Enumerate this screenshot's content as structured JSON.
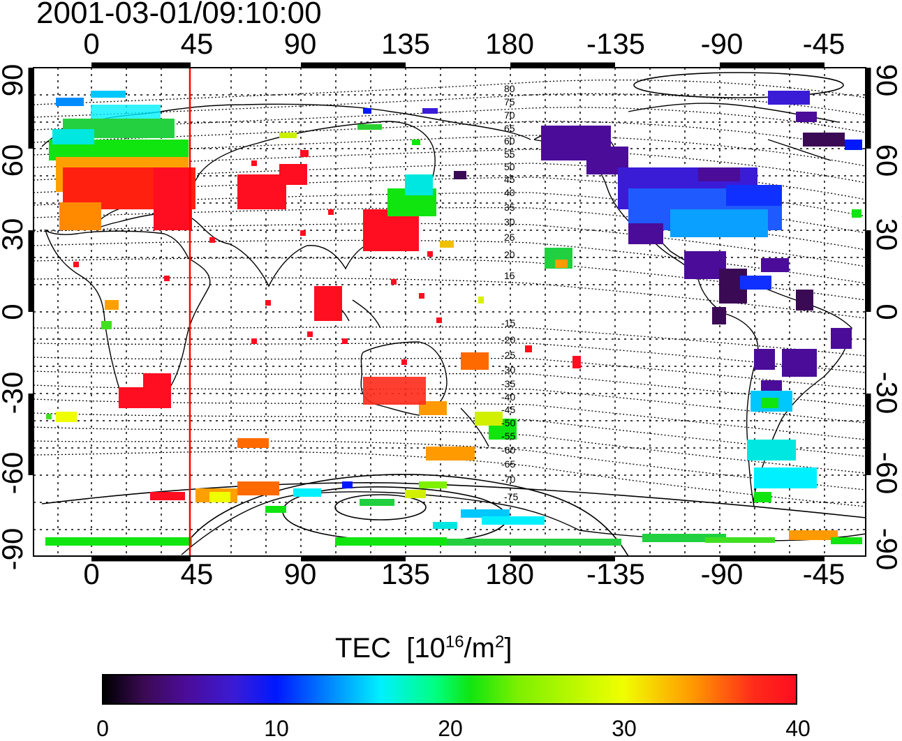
{
  "timestamp": "2001-03-01/09:10:00",
  "longitude_ticks": [
    "0",
    "45",
    "90",
    "135",
    "180",
    "-135",
    "-90",
    "-45"
  ],
  "latitude_ticks": [
    "90",
    "60",
    "30",
    "0",
    "-30",
    "-60",
    "-90"
  ],
  "contour_labels_north": [
    "80",
    "75",
    "70",
    "65",
    "60",
    "55",
    "50",
    "45",
    "40",
    "35",
    "30",
    "25",
    "20",
    "15"
  ],
  "contour_labels_south": [
    "-15",
    "-20",
    "-25",
    "-30",
    "-35",
    "-40",
    "-45",
    "-50",
    "-55",
    "-60",
    "-65",
    "-70",
    "-75"
  ],
  "marker_longitude": 45,
  "colorbar": {
    "title": "TEC",
    "unit_prefix": "[10",
    "unit_exp": "16",
    "unit_mid": "/m",
    "unit_exp2": "2",
    "unit_suffix": "]",
    "ticks": [
      "0",
      "10",
      "20",
      "30",
      "40"
    ],
    "range": [
      0,
      40
    ]
  },
  "colors": {
    "marker_line": "#ff0000",
    "frame": "#000000"
  }
}
